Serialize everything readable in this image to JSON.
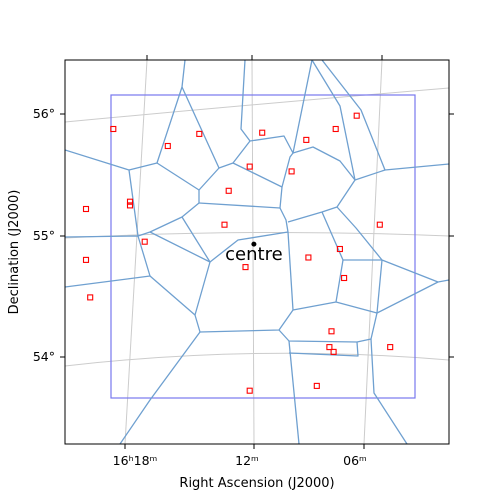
{
  "chart_data": {
    "type": "scatter",
    "xlabel": "Right Ascension (J2000)",
    "ylabel": "Declination (J2000)",
    "x_ticks": [
      {
        "ra_min": 18,
        "label": "16ʰ18ᵐ"
      },
      {
        "ra_min": 12,
        "label": "12ᵐ"
      },
      {
        "ra_min": 6,
        "label": "06ᵐ"
      }
    ],
    "y_ticks": [
      {
        "dec": 56,
        "label": "56°"
      },
      {
        "dec": 55,
        "label": "55°"
      },
      {
        "dec": 54,
        "label": "54°"
      }
    ],
    "xlim_ra_min": [
      20.2,
      1.9
    ],
    "ylim_dec": [
      53.27,
      56.44
    ],
    "grid": true,
    "centre": {
      "label": "centre",
      "ra_min": 11.2,
      "dec": 54.92
    },
    "points": [
      {
        "ra_min": 17.9,
        "dec": 55.87
      },
      {
        "ra_min": 15.3,
        "dec": 55.73
      },
      {
        "ra_min": 13.8,
        "dec": 55.83
      },
      {
        "ra_min": 10.8,
        "dec": 55.84
      },
      {
        "ra_min": 8.7,
        "dec": 55.78
      },
      {
        "ra_min": 7.3,
        "dec": 55.87
      },
      {
        "ra_min": 6.3,
        "dec": 55.98
      },
      {
        "ra_min": 11.4,
        "dec": 55.56
      },
      {
        "ra_min": 9.4,
        "dec": 55.52
      },
      {
        "ra_min": 12.4,
        "dec": 55.36
      },
      {
        "ra_min": 17.1,
        "dec": 55.27
      },
      {
        "ra_min": 17.1,
        "dec": 55.24
      },
      {
        "ra_min": 19.2,
        "dec": 55.21
      },
      {
        "ra_min": 12.6,
        "dec": 55.08
      },
      {
        "ra_min": 5.2,
        "dec": 55.08
      },
      {
        "ra_min": 16.4,
        "dec": 54.94
      },
      {
        "ra_min": 7.1,
        "dec": 54.88
      },
      {
        "ra_min": 8.6,
        "dec": 54.81
      },
      {
        "ra_min": 19.2,
        "dec": 54.79
      },
      {
        "ra_min": 11.6,
        "dec": 54.73
      },
      {
        "ra_min": 6.9,
        "dec": 54.64
      },
      {
        "ra_min": 19.0,
        "dec": 54.48
      },
      {
        "ra_min": 7.5,
        "dec": 54.2
      },
      {
        "ra_min": 7.6,
        "dec": 54.07
      },
      {
        "ra_min": 4.7,
        "dec": 54.07
      },
      {
        "ra_min": 7.4,
        "dec": 54.03
      },
      {
        "ra_min": 8.2,
        "dec": 53.75
      },
      {
        "ra_min": 11.4,
        "dec": 53.71
      }
    ],
    "colors": {
      "points": "#ff0000",
      "voronoi": "#6fa0d0",
      "footprint": "#7777ee",
      "grid": "#cccccc"
    }
  }
}
